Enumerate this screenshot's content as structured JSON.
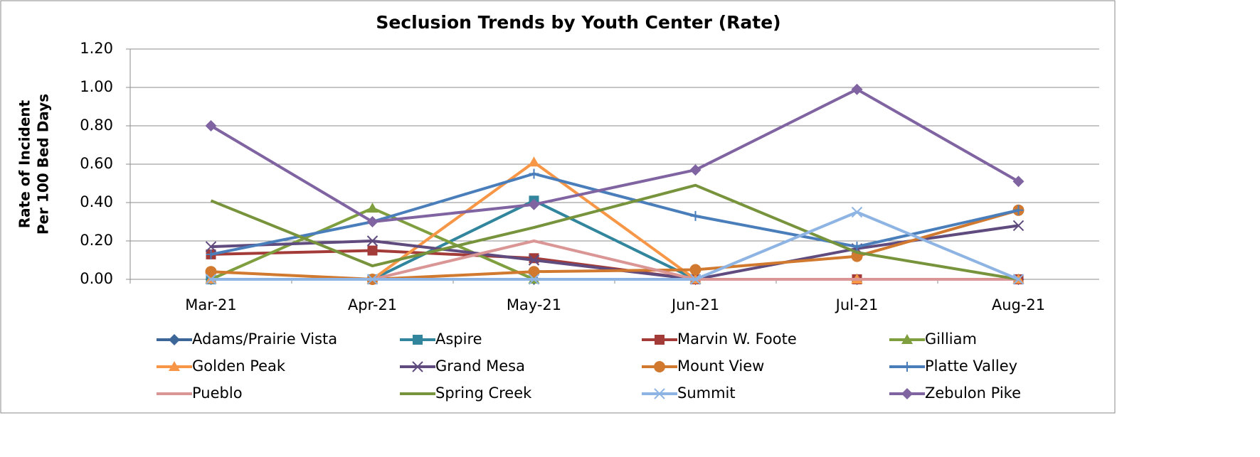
{
  "chart_data": {
    "type": "line",
    "title": "Seclusion Trends by Youth Center (Rate)",
    "y_label": [
      "Rate of Incident",
      "Per 100 Bed Days"
    ],
    "categories": [
      "Mar-21",
      "Apr-21",
      "May-21",
      "Jun-21",
      "Jul-21",
      "Aug-21"
    ],
    "ylim": [
      0,
      1.2
    ],
    "yticks": [
      {
        "value": 0,
        "label": "0.00"
      },
      {
        "value": 0.2,
        "label": "0.20"
      },
      {
        "value": 0.4,
        "label": "0.40"
      },
      {
        "value": 0.6,
        "label": "0.60"
      },
      {
        "value": 0.8,
        "label": "0.80"
      },
      {
        "value": 1.0,
        "label": "1.00"
      },
      {
        "value": 1.2,
        "label": "1.20"
      }
    ],
    "grid": true,
    "legend": "bottom",
    "series": [
      {
        "name": "Adams/Prairie Vista",
        "color": "#3c6598",
        "marker": "diamond",
        "values": [
          0,
          0,
          0,
          0,
          0,
          0
        ]
      },
      {
        "name": "Aspire",
        "color": "#31859c",
        "marker": "square",
        "values": [
          0,
          0,
          0.41,
          0,
          0,
          0
        ]
      },
      {
        "name": "Marvin W. Foote",
        "color": "#a33b38",
        "marker": "square",
        "values": [
          0.13,
          0.15,
          0.11,
          0,
          0,
          0
        ]
      },
      {
        "name": "Gilliam",
        "color": "#7f9f3f",
        "marker": "triangle",
        "values": [
          0,
          0.37,
          0,
          0,
          0,
          0
        ]
      },
      {
        "name": "Golden Peak",
        "color": "#f79646",
        "marker": "triangle",
        "values": [
          0,
          0,
          0.61,
          0,
          0,
          0
        ]
      },
      {
        "name": "Grand Mesa",
        "color": "#5f4b7e",
        "marker": "x",
        "values": [
          0.17,
          0.2,
          0.1,
          0,
          0.16,
          0.28
        ]
      },
      {
        "name": "Mount View",
        "color": "#d0792f",
        "marker": "circle",
        "values": [
          0.04,
          0,
          0.04,
          0.05,
          0.12,
          0.36
        ]
      },
      {
        "name": "Platte Valley",
        "color": "#4a7ebb",
        "marker": "plus",
        "values": [
          0.13,
          0.3,
          0.55,
          0.33,
          0.17,
          0.36
        ]
      },
      {
        "name": "Pueblo",
        "color": "#d99694",
        "marker": "none",
        "values": [
          0,
          0,
          0.2,
          0,
          0,
          0
        ]
      },
      {
        "name": "Spring Creek",
        "color": "#77933c",
        "marker": "none",
        "values": [
          0.41,
          0.07,
          0.27,
          0.49,
          0.14,
          0
        ]
      },
      {
        "name": "Summit",
        "color": "#8eb4e3",
        "marker": "x",
        "values": [
          0,
          0,
          0,
          0,
          0.35,
          0
        ]
      },
      {
        "name": "Zebulon Pike",
        "color": "#8064a2",
        "marker": "diamond",
        "values": [
          0.8,
          0.3,
          0.39,
          0.57,
          0.99,
          0.51
        ]
      }
    ]
  }
}
